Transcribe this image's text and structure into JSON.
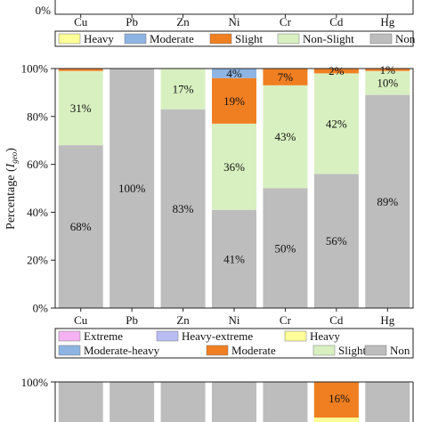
{
  "top_panel": {
    "y_tick_visible": "0%",
    "categories": [
      "Cu",
      "Pb",
      "Zn",
      "Ni",
      "Cr",
      "Cd",
      "Hg"
    ],
    "legend": [
      {
        "label": "Heavy",
        "color": "#FFFF99"
      },
      {
        "label": "Moderate",
        "color": "#8DB4E2"
      },
      {
        "label": "Slight",
        "color": "#F07F22"
      },
      {
        "label": "Non-Slight",
        "color": "#D8F0C0"
      },
      {
        "label": "Non",
        "color": "#BDBDBD"
      }
    ]
  },
  "middle_panel": {
    "legend": [
      {
        "label": "Extreme",
        "color": "#F4B2F2"
      },
      {
        "label": "Heavy-extreme",
        "color": "#B8BEF2"
      },
      {
        "label": "Heavy",
        "color": "#FFFF99"
      },
      {
        "label": "Moderate-heavy",
        "color": "#8DB4E2"
      },
      {
        "label": "Moderate",
        "color": "#F07F22"
      },
      {
        "label": "Slight",
        "color": "#D8F0C0"
      },
      {
        "label": "Non",
        "color": "#BDBDBD"
      }
    ]
  },
  "bottom_panel": {
    "y_tick_visible": "100%",
    "label_visible": "16%"
  },
  "chart_data": [
    {
      "type": "bar",
      "stacked": true,
      "categories": [
        "Cu",
        "Pb",
        "Zn",
        "Ni",
        "Cr",
        "Cd",
        "Hg"
      ],
      "ylabel": "Percentage (I_geo)",
      "ylabel_main": "Percentage (",
      "ylabel_italic": "I",
      "ylabel_sub": "geo",
      "ylabel_close": ")",
      "ylim": [
        0,
        100
      ],
      "yticks": [
        "0%",
        "20%",
        "40%",
        "60%",
        "80%",
        "100%"
      ],
      "series": [
        {
          "name": "Non",
          "color": "#BDBDBD",
          "values": [
            68,
            100,
            83,
            41,
            50,
            56,
            89
          ]
        },
        {
          "name": "Slight",
          "color": "#D8F0C0",
          "values": [
            31,
            0,
            17,
            36,
            43,
            42,
            10
          ]
        },
        {
          "name": "Moderate",
          "color": "#F07F22",
          "values": [
            1,
            0,
            0,
            19,
            7,
            2,
            1
          ]
        },
        {
          "name": "Moderate-heavy",
          "color": "#8DB4E2",
          "values": [
            0,
            0,
            0,
            4,
            0,
            0,
            0
          ]
        }
      ],
      "data_labels": [
        {
          "category": "Cu",
          "series": "Non",
          "text": "68%"
        },
        {
          "category": "Cu",
          "series": "Slight",
          "text": "31%"
        },
        {
          "category": "Pb",
          "series": "Non",
          "text": "100%"
        },
        {
          "category": "Zn",
          "series": "Non",
          "text": "83%"
        },
        {
          "category": "Zn",
          "series": "Slight",
          "text": "17%"
        },
        {
          "category": "Ni",
          "series": "Non",
          "text": "41%"
        },
        {
          "category": "Ni",
          "series": "Slight",
          "text": "36%"
        },
        {
          "category": "Ni",
          "series": "Moderate",
          "text": "19%"
        },
        {
          "category": "Ni",
          "series": "Moderate-heavy",
          "text": "4%"
        },
        {
          "category": "Cr",
          "series": "Non",
          "text": "50%"
        },
        {
          "category": "Cr",
          "series": "Slight",
          "text": "43%"
        },
        {
          "category": "Cr",
          "series": "Moderate",
          "text": "7%"
        },
        {
          "category": "Cd",
          "series": "Non",
          "text": "56%"
        },
        {
          "category": "Cd",
          "series": "Slight",
          "text": "42%"
        },
        {
          "category": "Cd",
          "series": "Moderate",
          "text": "2%"
        },
        {
          "category": "Hg",
          "series": "Non",
          "text": "89%"
        },
        {
          "category": "Hg",
          "series": "Slight",
          "text": "10%"
        },
        {
          "category": "Hg",
          "series": "Moderate",
          "text": "1%"
        }
      ]
    }
  ]
}
